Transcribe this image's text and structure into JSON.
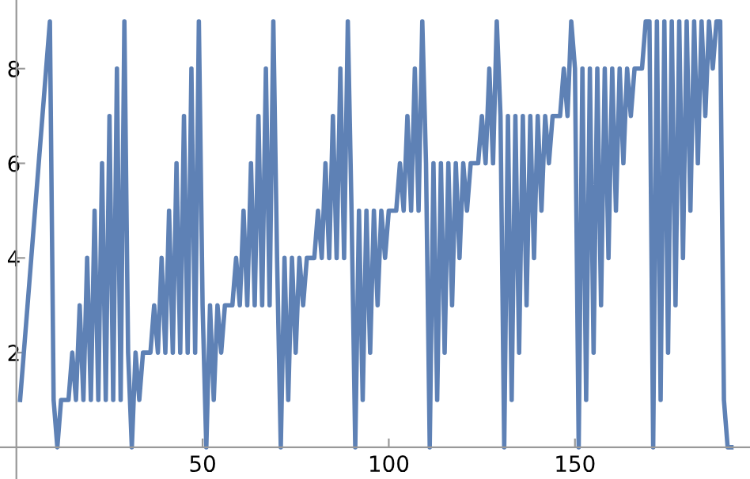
{
  "chart_data": {
    "type": "line",
    "x": [
      1,
      2,
      3,
      4,
      5,
      6,
      7,
      8,
      9,
      10,
      11,
      12,
      13,
      14,
      15,
      16,
      17,
      18,
      19,
      20,
      21,
      22,
      23,
      24,
      25,
      26,
      27,
      28,
      29,
      30,
      31,
      32,
      33,
      34,
      35,
      36,
      37,
      38,
      39,
      40,
      41,
      42,
      43,
      44,
      45,
      46,
      47,
      48,
      49,
      50,
      51,
      52,
      53,
      54,
      55,
      56,
      57,
      58,
      59,
      60,
      61,
      62,
      63,
      64,
      65,
      66,
      67,
      68,
      69,
      70,
      71,
      72,
      73,
      74,
      75,
      76,
      77,
      78,
      79,
      80,
      81,
      82,
      83,
      84,
      85,
      86,
      87,
      88,
      89,
      90,
      91,
      92,
      93,
      94,
      95,
      96,
      97,
      98,
      99,
      100,
      101,
      102,
      103,
      104,
      105,
      106,
      107,
      108,
      109,
      110,
      111,
      112,
      113,
      114,
      115,
      116,
      117,
      118,
      119,
      120,
      121,
      122,
      123,
      124,
      125,
      126,
      127,
      128,
      129,
      130,
      131,
      132,
      133,
      134,
      135,
      136,
      137,
      138,
      139,
      140,
      141,
      142,
      143,
      144,
      145,
      146,
      147,
      148,
      149,
      150,
      151,
      152,
      153,
      154,
      155,
      156,
      157,
      158,
      159,
      160,
      161,
      162,
      163,
      164,
      165,
      166,
      167,
      168,
      169,
      170,
      171,
      172,
      173,
      174,
      175,
      176,
      177,
      178,
      179,
      180,
      181,
      182,
      183,
      184,
      185,
      186,
      187,
      188,
      189,
      190,
      191,
      192
    ],
    "series": [
      {
        "color": "#5e81b5",
        "values": [
          1,
          2,
          3,
          4,
          5,
          6,
          7,
          8,
          9,
          1,
          0,
          1,
          1,
          1,
          2,
          1,
          3,
          1,
          4,
          1,
          5,
          1,
          6,
          1,
          7,
          1,
          8,
          1,
          9,
          2,
          0,
          2,
          1,
          2,
          2,
          2,
          3,
          2,
          4,
          2,
          5,
          2,
          6,
          2,
          7,
          2,
          8,
          2,
          9,
          3,
          0,
          3,
          1,
          3,
          2,
          3,
          3,
          3,
          4,
          3,
          5,
          3,
          6,
          3,
          7,
          3,
          8,
          3,
          9,
          4,
          0,
          4,
          1,
          4,
          2,
          4,
          3,
          4,
          4,
          4,
          5,
          4,
          6,
          4,
          7,
          4,
          8,
          4,
          9,
          5,
          0,
          5,
          1,
          5,
          2,
          5,
          3,
          5,
          4,
          5,
          5,
          5,
          6,
          5,
          7,
          5,
          8,
          5,
          9,
          6,
          0,
          6,
          1,
          6,
          2,
          6,
          3,
          6,
          4,
          6,
          5,
          6,
          6,
          6,
          7,
          6,
          8,
          6,
          9,
          7,
          0,
          7,
          1,
          7,
          2,
          7,
          3,
          7,
          4,
          7,
          5,
          7,
          6,
          7,
          7,
          7,
          8,
          7,
          9,
          8,
          0,
          8,
          1,
          8,
          2,
          8,
          3,
          8,
          4,
          8,
          5,
          8,
          6,
          8,
          7,
          8,
          8,
          8,
          9,
          9,
          0,
          9,
          1,
          9,
          2,
          9,
          3,
          9,
          4,
          9,
          5,
          9,
          6,
          9,
          7,
          9,
          8,
          9,
          9,
          1,
          0,
          0
        ]
      }
    ],
    "xlim": [
      -4.4,
      197
    ],
    "ylim": [
      -0.67,
      9.45
    ],
    "xticks": [
      50,
      100,
      150
    ],
    "yticks": [
      2,
      4,
      6,
      8
    ],
    "grid": false,
    "legend": false,
    "marker": "none",
    "line_style": "solid"
  }
}
